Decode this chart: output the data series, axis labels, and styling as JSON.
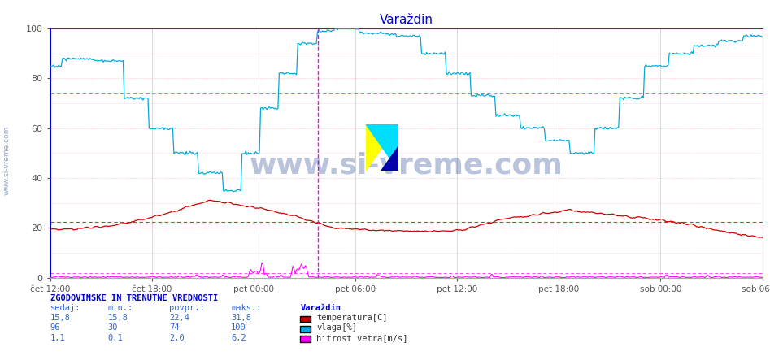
{
  "title": "Varaždin",
  "title_color": "#0000cc",
  "bg_color": "#ffffff",
  "plot_bg_color": "#ffffff",
  "ylim": [
    0,
    100
  ],
  "yticks": [
    0,
    20,
    40,
    60,
    80,
    100
  ],
  "xtick_labels": [
    "čet 12:00",
    "čet 18:00",
    "pet 00:00",
    "pet 06:00",
    "pet 12:00",
    "pet 18:00",
    "sob 00:00",
    "sob 06:00"
  ],
  "temp_color": "#cc0000",
  "vlaga_color": "#00aadd",
  "wind_color": "#ff00ff",
  "avg_temp": 22.4,
  "avg_vlaga": 74,
  "avg_wind": 2.0,
  "watermark": "www.si-vreme.com",
  "sidebar_text": "www.si-vreme.com",
  "legend_title": "Varaždin",
  "stats_header": "ZGODOVINSKE IN TRENUTNE VREDNOSTI",
  "stats_cols": [
    "sedaj:",
    "min.:",
    "povpr.:",
    "maks.:"
  ],
  "stats_temp": [
    "15,8",
    "15,8",
    "22,4",
    "31,8"
  ],
  "stats_vlaga": [
    "96",
    "30",
    "74",
    "100"
  ],
  "stats_wind": [
    "1,1",
    "0,1",
    "2,0",
    "6,2"
  ],
  "label_temp": "temperatura[C]",
  "label_vlaga": "vlaga[%]",
  "label_wind": "hitrost vetra[m/s]",
  "n_points": 576,
  "vline_idx": 216
}
